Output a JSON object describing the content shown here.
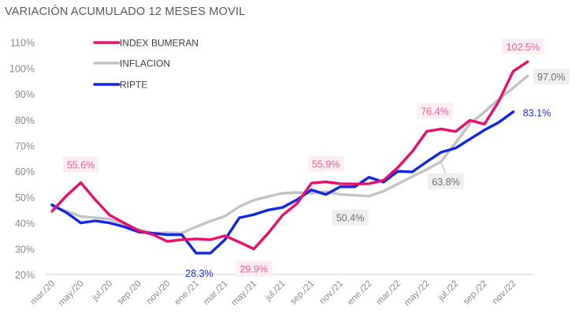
{
  "chart_data": {
    "type": "line",
    "title": "VARIACIÓN ACUMULADO 12 MESES MOVIL",
    "xlabel": "",
    "ylabel": "",
    "ylim": [
      20,
      110
    ],
    "yticks": [
      "20%",
      "30%",
      "40%",
      "50%",
      "60%",
      "70%",
      "80%",
      "90%",
      "100%",
      "110%"
    ],
    "ytick_values": [
      20,
      30,
      40,
      50,
      60,
      70,
      80,
      90,
      100,
      110
    ],
    "x": [
      "mar./20",
      "abr./20",
      "may./20",
      "jun./20",
      "jul./20",
      "ago./20",
      "sep./20",
      "oct./20",
      "nov./20",
      "dic./20",
      "ene./21",
      "feb./21",
      "mar./21",
      "abr./21",
      "may./21",
      "jun./21",
      "jul./21",
      "ago./21",
      "sep./21",
      "oct./21",
      "nov./21",
      "dic./21",
      "ene./22",
      "feb./22",
      "mar./22",
      "abr./22",
      "may./22",
      "jun./22",
      "jul./22",
      "ago./22",
      "sep./22",
      "oct./22",
      "nov./22",
      "dic./22"
    ],
    "xtick_labels": [
      "mar./20",
      "may./20",
      "jul./20",
      "sep./20",
      "nov./20",
      "ene./21",
      "mar./21",
      "may./21",
      "jul./21",
      "sep./21",
      "nov./21",
      "ene./22",
      "mar./22",
      "may./22",
      "jul./22",
      "sep./22",
      "nov./22"
    ],
    "xtick_indices": [
      0,
      2,
      4,
      6,
      8,
      10,
      12,
      14,
      16,
      18,
      20,
      22,
      24,
      26,
      28,
      30,
      32
    ],
    "grid": false,
    "legend_position": "top-left",
    "series": [
      {
        "name": "INDEX BUMERAN",
        "color": "#e8106c",
        "values": [
          44.5,
          50.5,
          55.6,
          49,
          43,
          40,
          37,
          35.5,
          32.8,
          33.5,
          33.8,
          33.5,
          35,
          32.5,
          29.9,
          36,
          43,
          47.5,
          55.4,
          55.9,
          55.2,
          55.1,
          55.2,
          56.5,
          61.5,
          67.7,
          75.5,
          76.4,
          75.4,
          79.8,
          78.3,
          87.2,
          98.8,
          102.5
        ]
      },
      {
        "name": "INFLACION",
        "color": "#c3c3c3",
        "values": [
          46.5,
          44.5,
          42.5,
          42,
          41.5,
          39.5,
          37.5,
          36,
          36.2,
          36.1,
          38.5,
          40.7,
          42.6,
          46.3,
          48.8,
          50.2,
          51.5,
          51.8,
          51.5,
          52.1,
          51,
          50.7,
          50.4,
          52.3,
          55.1,
          58,
          60.7,
          63.8,
          71,
          78.5,
          83,
          88,
          92.4,
          97
        ]
      },
      {
        "name": "RIPTE",
        "color": "#1226e6",
        "values": [
          47,
          44,
          40,
          40.8,
          40,
          38.5,
          36.5,
          36,
          35.4,
          35.4,
          28.3,
          28.3,
          33.5,
          42,
          43.2,
          45,
          46,
          49,
          52.8,
          51,
          54,
          54,
          57.7,
          55.8,
          60,
          59.8,
          63.7,
          67.4,
          69,
          72.5,
          76,
          79,
          83.1
        ]
      }
    ],
    "annotations": [
      {
        "series": "INDEX BUMERAN",
        "index": 2,
        "text": "55.6%",
        "style": "pink"
      },
      {
        "series": "INDEX BUMERAN",
        "index": 14,
        "text": "29.9%",
        "style": "pink"
      },
      {
        "series": "INDEX BUMERAN",
        "index": 19,
        "text": "55.9%",
        "style": "pink"
      },
      {
        "series": "INDEX BUMERAN",
        "index": 27,
        "text": "76.4%",
        "style": "pink"
      },
      {
        "series": "INDEX BUMERAN",
        "index": 33,
        "text": "102.5%",
        "style": "pink"
      },
      {
        "series": "INFLACION",
        "index": 22,
        "text": "50.4%",
        "style": "gray"
      },
      {
        "series": "INFLACION",
        "index": 27,
        "text": "63.8%",
        "style": "gray"
      },
      {
        "series": "INFLACION",
        "index": 33,
        "text": "97.0%",
        "style": "gray"
      },
      {
        "series": "RIPTE",
        "index": 10,
        "text": "28.3%",
        "style": "blue"
      },
      {
        "series": "RIPTE",
        "index": 32,
        "text": "83.1%",
        "style": "blue"
      }
    ],
    "label_styles": {
      "pink": {
        "text": "#ec5a94",
        "box": "#fdeef4"
      },
      "gray": {
        "text": "#6f6f6f",
        "box": "#efefef"
      },
      "blue": {
        "text": "#1a2be0",
        "box": "none"
      }
    },
    "axis_color": "#d9d9d9"
  }
}
